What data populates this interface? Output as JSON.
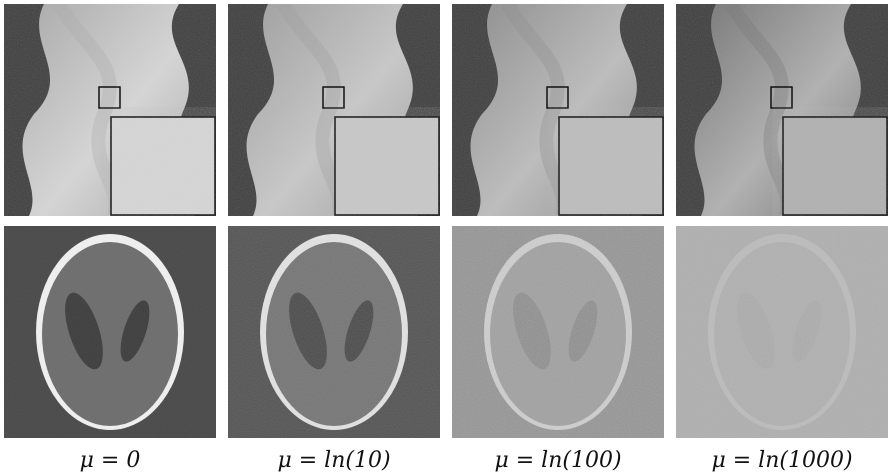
{
  "figure": {
    "panels": [
      {
        "label": "μ = 0",
        "sinogram_brightness": "#d8d8d8",
        "sinogram_mid": "#a8a8a8",
        "phantom_bg": "#454545",
        "phantom_body": "#6a6a6a",
        "phantom_ring": "#f2f2f2",
        "phantom_dark": "#3a3a3a",
        "phantom_noise": 0.15
      },
      {
        "label": "μ = ln(10)",
        "sinogram_brightness": "#c9c9c9",
        "sinogram_mid": "#9c9c9c",
        "phantom_bg": "#4c4c4c",
        "phantom_body": "#707070",
        "phantom_ring": "#e6e6e6",
        "phantom_dark": "#444444",
        "phantom_noise": 0.3
      },
      {
        "label": "μ = ln(100)",
        "sinogram_brightness": "#bdbdbd",
        "sinogram_mid": "#8a8a8a",
        "phantom_bg": "#8c8c8c",
        "phantom_body": "#9a9a9a",
        "phantom_ring": "#d4d4d4",
        "phantom_dark": "#858585",
        "phantom_noise": 0.6
      },
      {
        "label": "μ = ln(1000)",
        "sinogram_brightness": "#b0b0b0",
        "sinogram_mid": "#707070",
        "phantom_bg": "#a8a8a8",
        "phantom_body": "#aaaaaa",
        "phantom_ring": "#bcbcbc",
        "phantom_dark": "#a4a4a4",
        "phantom_noise": 0.85
      }
    ]
  }
}
